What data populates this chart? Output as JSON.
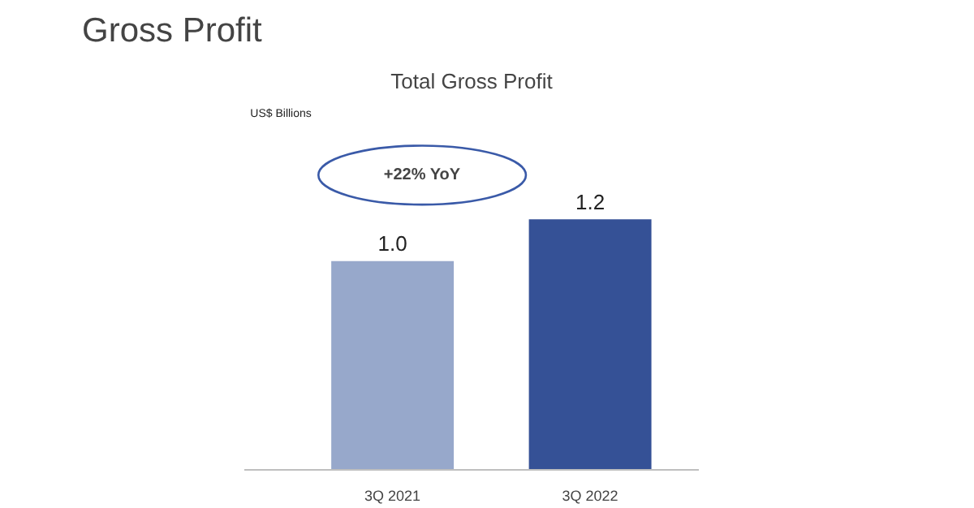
{
  "chart_data": {
    "type": "bar",
    "title": "Gross Profit",
    "subtitle": "Total Gross Profit",
    "categories": [
      "3Q 2021",
      "3Q 2022"
    ],
    "values": [
      1.0,
      1.2
    ],
    "value_labels": [
      "1.0",
      "1.2"
    ],
    "colors": [
      "#97a8cb",
      "#355196"
    ],
    "grid": false,
    "annotations": [
      "US$ Billions",
      "+22% YoY"
    ]
  }
}
